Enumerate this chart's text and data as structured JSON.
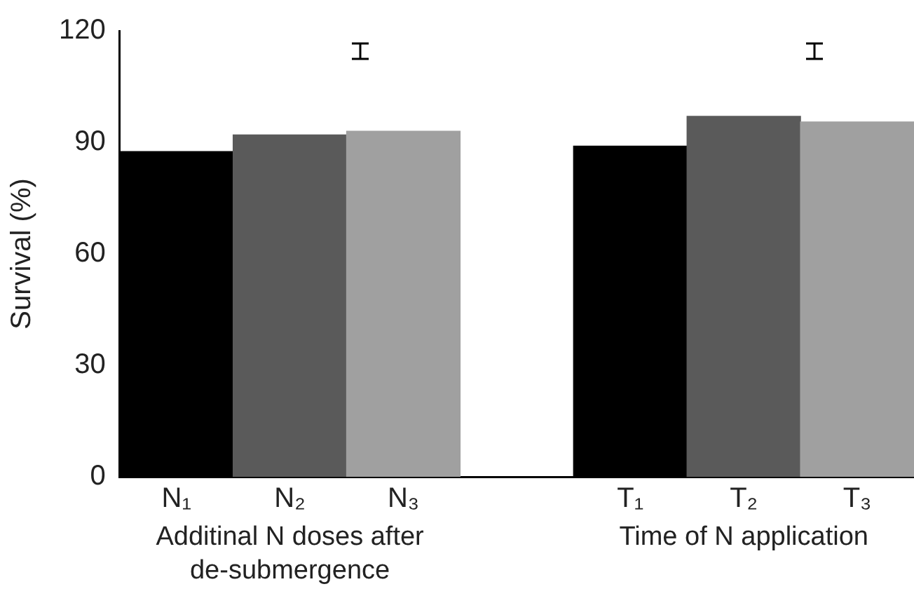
{
  "chart_data": {
    "type": "bar",
    "ylabel": "Survival (%)",
    "categories": [
      "N₁",
      "N₂",
      "N₃",
      null,
      "T₁",
      "T₂",
      "T₃"
    ],
    "values": [
      87.5,
      92,
      93,
      null,
      89,
      97,
      95.5
    ],
    "colors": [
      "#000000",
      "#5a5a5a",
      "#a0a0a0",
      null,
      "#000000",
      "#5a5a5a",
      "#a0a0a0"
    ],
    "ylim": [
      0,
      120
    ],
    "yticks": [
      0,
      30,
      60,
      90,
      120
    ],
    "grid": false,
    "legend": false,
    "annotations": [
      "Additinal N doses after de-submergence",
      "Time of N application"
    ]
  }
}
